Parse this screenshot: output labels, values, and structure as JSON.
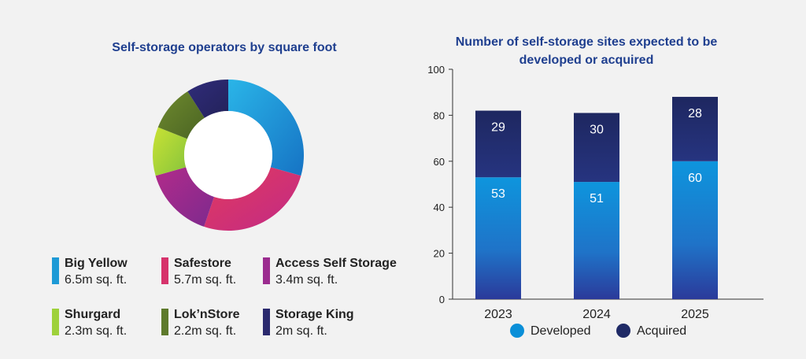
{
  "donut": {
    "title": "Self-storage operators by square foot",
    "chart_data": {
      "type": "pie",
      "categories": [
        "Big Yellow",
        "Safestore",
        "Access Self Storage",
        "Shurgard",
        "Lok'nStore",
        "Storage King"
      ],
      "values": [
        6.5,
        5.7,
        3.4,
        2.3,
        2.2,
        2
      ],
      "unit": "m sq. ft."
    },
    "legend": [
      {
        "name": "Big Yellow",
        "value": "6.5m sq. ft.",
        "color": "#1e9ad6"
      },
      {
        "name": "Safestore",
        "value": "5.7m sq. ft.",
        "color": "#d6336c"
      },
      {
        "name": "Access Self Storage",
        "value": "3.4m sq. ft.",
        "color": "#9b2c8f"
      },
      {
        "name": "Shurgard",
        "value": "2.3m sq. ft.",
        "color": "#9ed13b"
      },
      {
        "name": "Lok’nStore",
        "value": "2.2m sq. ft.",
        "color": "#5e7a2c"
      },
      {
        "name": "Storage King",
        "value": "2m sq. ft.",
        "color": "#2b2a6e"
      }
    ]
  },
  "bars": {
    "title": "Number of self-storage sites expected to be developed or acquired",
    "chart_data": {
      "type": "bar",
      "stacked": true,
      "categories": [
        "2023",
        "2024",
        "2025"
      ],
      "series": [
        {
          "name": "Developed",
          "values": [
            53,
            51,
            60
          ],
          "color": "#0a8fd8"
        },
        {
          "name": "Acquired",
          "values": [
            29,
            30,
            28
          ],
          "color": "#1f2a66"
        }
      ],
      "ylim": [
        0,
        100
      ],
      "yticks": [
        0,
        20,
        40,
        60,
        80,
        100
      ],
      "legend_position": "bottom"
    }
  }
}
